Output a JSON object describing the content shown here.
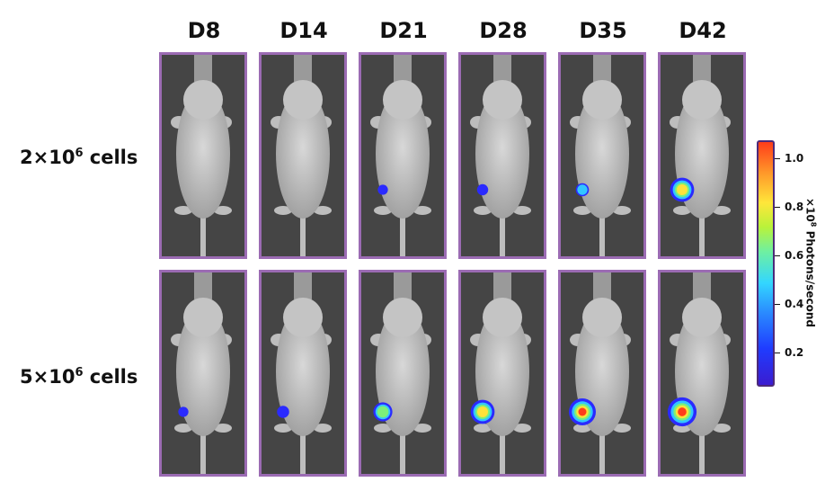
{
  "days": [
    "D8",
    "D14",
    "D21",
    "D28",
    "D35",
    "D42"
  ],
  "rows": [
    {
      "label_base": "2×10",
      "label_exp": "6",
      "label_suffix": " cells",
      "signal": [
        0,
        0,
        0.15,
        0.2,
        0.3,
        0.85
      ]
    },
    {
      "label_base": "5×10",
      "label_exp": "6",
      "label_suffix": " cells",
      "signal": [
        0.15,
        0.25,
        0.6,
        0.85,
        1.0,
        1.1
      ]
    }
  ],
  "colorbar": {
    "ticks": [
      "1.0",
      "0.8",
      "0.6",
      "0.4",
      "0.2"
    ],
    "unit_prefix": "×10",
    "unit_exp": "8",
    "unit_suffix": "Photons/second"
  },
  "colors": {
    "border": "#9b6bb3",
    "background": "#4a4a4a",
    "mouse": "#c8c8c8"
  }
}
